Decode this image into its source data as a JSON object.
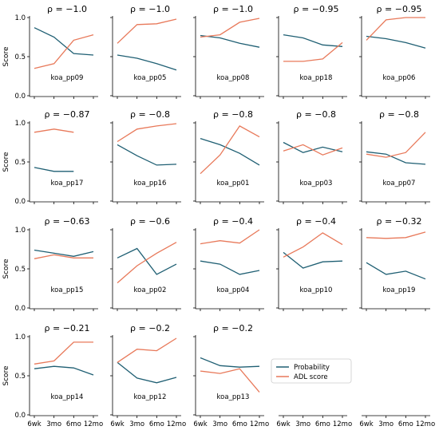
{
  "figure": {
    "x_ticks": [
      "6wk",
      "3mo",
      "6mo",
      "12mo"
    ],
    "y_ticks": [
      "0.0",
      "0.5",
      "1.0"
    ],
    "y_label": "Score",
    "legend": [
      {
        "label": "Probability",
        "color": "#1f5f73"
      },
      {
        "label": "ADL score",
        "color": "#e8795a"
      }
    ]
  },
  "chart_data": [
    {
      "type": "line",
      "title": "ρ = −1.0",
      "patient": "koa_pp09",
      "x": [
        "6wk",
        "3mo",
        "6mo",
        "12mo"
      ],
      "ylim": [
        0,
        1
      ],
      "series": [
        {
          "name": "Probability",
          "values": [
            0.87,
            0.75,
            0.54,
            0.52
          ]
        },
        {
          "name": "ADL score",
          "values": [
            0.35,
            0.41,
            0.71,
            0.78
          ]
        }
      ]
    },
    {
      "type": "line",
      "title": "ρ = −1.0",
      "patient": "koa_pp05",
      "x": [
        "6wk",
        "3mo",
        "6mo",
        "12mo"
      ],
      "ylim": [
        0,
        1
      ],
      "series": [
        {
          "name": "Probability",
          "values": [
            0.52,
            0.48,
            0.41,
            0.33
          ]
        },
        {
          "name": "ADL score",
          "values": [
            0.67,
            0.91,
            0.92,
            0.98
          ]
        }
      ]
    },
    {
      "type": "line",
      "title": "ρ = −1.0",
      "patient": "koa_pp08",
      "x": [
        "6wk",
        "3mo",
        "6mo",
        "12mo"
      ],
      "ylim": [
        0,
        1
      ],
      "series": [
        {
          "name": "Probability",
          "values": [
            0.77,
            0.74,
            0.67,
            0.62
          ]
        },
        {
          "name": "ADL score",
          "values": [
            0.75,
            0.78,
            0.94,
            0.99
          ]
        }
      ]
    },
    {
      "type": "line",
      "title": "ρ = −0.95",
      "patient": "koa_pp18",
      "x": [
        "6wk",
        "3mo",
        "6mo",
        "12mo"
      ],
      "ylim": [
        0,
        1
      ],
      "series": [
        {
          "name": "Probability",
          "values": [
            0.78,
            0.74,
            0.65,
            0.63
          ]
        },
        {
          "name": "ADL score",
          "values": [
            0.44,
            0.44,
            0.47,
            0.68
          ]
        }
      ]
    },
    {
      "type": "line",
      "title": "ρ = −0.95",
      "patient": "koa_pp06",
      "x": [
        "6wk",
        "3mo",
        "6mo",
        "12mo"
      ],
      "ylim": [
        0,
        1
      ],
      "series": [
        {
          "name": "Probability",
          "values": [
            0.76,
            0.73,
            0.68,
            0.61
          ]
        },
        {
          "name": "ADL score",
          "values": [
            0.71,
            0.97,
            1.0,
            1.0
          ]
        }
      ]
    },
    {
      "type": "line",
      "title": "ρ = −0.87",
      "patient": "koa_pp17",
      "x": [
        "6wk",
        "3mo",
        "6mo",
        "12mo"
      ],
      "ylim": [
        0,
        1
      ],
      "series": [
        {
          "name": "Probability",
          "values": [
            0.43,
            0.38,
            0.38,
            null
          ]
        },
        {
          "name": "ADL score",
          "values": [
            0.88,
            0.92,
            0.88,
            null
          ]
        }
      ]
    },
    {
      "type": "line",
      "title": "ρ = −0.8",
      "patient": "koa_pp16",
      "x": [
        "6wk",
        "3mo",
        "6mo",
        "12mo"
      ],
      "ylim": [
        0,
        1
      ],
      "series": [
        {
          "name": "Probability",
          "values": [
            0.72,
            0.58,
            0.46,
            0.47
          ]
        },
        {
          "name": "ADL score",
          "values": [
            0.76,
            0.92,
            0.96,
            0.99
          ]
        }
      ]
    },
    {
      "type": "line",
      "title": "ρ = −0.8",
      "patient": "koa_pp01",
      "x": [
        "6wk",
        "3mo",
        "6mo",
        "12mo"
      ],
      "ylim": [
        0,
        1
      ],
      "series": [
        {
          "name": "Probability",
          "values": [
            0.8,
            0.72,
            0.61,
            0.46
          ]
        },
        {
          "name": "ADL score",
          "values": [
            0.35,
            0.59,
            0.96,
            0.82
          ]
        }
      ]
    },
    {
      "type": "line",
      "title": "ρ = −0.8",
      "patient": "koa_pp03",
      "x": [
        "6wk",
        "3mo",
        "6mo",
        "12mo"
      ],
      "ylim": [
        0,
        1
      ],
      "series": [
        {
          "name": "Probability",
          "values": [
            0.75,
            0.62,
            0.69,
            0.63
          ]
        },
        {
          "name": "ADL score",
          "values": [
            0.64,
            0.72,
            0.59,
            0.68
          ]
        }
      ]
    },
    {
      "type": "line",
      "title": "ρ = −0.8",
      "patient": "koa_pp07",
      "x": [
        "6wk",
        "3mo",
        "6mo",
        "12mo"
      ],
      "ylim": [
        0,
        1
      ],
      "series": [
        {
          "name": "Probability",
          "values": [
            0.63,
            0.6,
            0.49,
            0.47
          ]
        },
        {
          "name": "ADL score",
          "values": [
            0.6,
            0.56,
            0.62,
            0.88
          ]
        }
      ]
    },
    {
      "type": "line",
      "title": "ρ = −0.63",
      "patient": "koa_pp15",
      "x": [
        "6wk",
        "3mo",
        "6mo",
        "12mo"
      ],
      "ylim": [
        0,
        1
      ],
      "series": [
        {
          "name": "Probability",
          "values": [
            0.74,
            0.7,
            0.66,
            0.72
          ]
        },
        {
          "name": "ADL score",
          "values": [
            0.63,
            0.68,
            0.64,
            0.64
          ]
        }
      ]
    },
    {
      "type": "line",
      "title": "ρ = −0.6",
      "patient": "koa_pp02",
      "x": [
        "6wk",
        "3mo",
        "6mo",
        "12mo"
      ],
      "ylim": [
        0,
        1
      ],
      "series": [
        {
          "name": "Probability",
          "values": [
            0.64,
            0.76,
            0.43,
            0.56
          ]
        },
        {
          "name": "ADL score",
          "values": [
            0.32,
            0.54,
            0.7,
            0.84
          ]
        }
      ]
    },
    {
      "type": "line",
      "title": "ρ = −0.4",
      "patient": "koa_pp04",
      "x": [
        "6wk",
        "3mo",
        "6mo",
        "12mo"
      ],
      "ylim": [
        0,
        1
      ],
      "series": [
        {
          "name": "Probability",
          "values": [
            0.6,
            0.56,
            0.43,
            0.48
          ]
        },
        {
          "name": "ADL score",
          "values": [
            0.82,
            0.86,
            0.83,
            1.0
          ]
        }
      ]
    },
    {
      "type": "line",
      "title": "ρ = −0.4",
      "patient": "koa_pp10",
      "x": [
        "6wk",
        "3mo",
        "6mo",
        "12mo"
      ],
      "ylim": [
        0,
        1
      ],
      "series": [
        {
          "name": "Probability",
          "values": [
            0.71,
            0.51,
            0.59,
            0.6
          ]
        },
        {
          "name": "ADL score",
          "values": [
            0.65,
            0.78,
            0.96,
            0.81
          ]
        }
      ]
    },
    {
      "type": "line",
      "title": "ρ = −0.32",
      "patient": "koa_pp19",
      "x": [
        "6wk",
        "3mo",
        "6mo",
        "12mo"
      ],
      "ylim": [
        0,
        1
      ],
      "series": [
        {
          "name": "Probability",
          "values": [
            0.58,
            0.43,
            0.47,
            0.37
          ]
        },
        {
          "name": "ADL score",
          "values": [
            0.9,
            0.89,
            0.9,
            0.97
          ]
        }
      ]
    },
    {
      "type": "line",
      "title": "ρ = −0.21",
      "patient": "koa_pp14",
      "x": [
        "6wk",
        "3mo",
        "6mo",
        "12mo"
      ],
      "ylim": [
        0,
        1
      ],
      "series": [
        {
          "name": "Probability",
          "values": [
            0.59,
            0.62,
            0.6,
            0.51
          ]
        },
        {
          "name": "ADL score",
          "values": [
            0.65,
            0.69,
            0.93,
            0.93
          ]
        }
      ]
    },
    {
      "type": "line",
      "title": "ρ = −0.2",
      "patient": "koa_pp12",
      "x": [
        "6wk",
        "3mo",
        "6mo",
        "12mo"
      ],
      "ylim": [
        0,
        1
      ],
      "series": [
        {
          "name": "Probability",
          "values": [
            0.67,
            0.47,
            0.41,
            0.48
          ]
        },
        {
          "name": "ADL score",
          "values": [
            0.67,
            0.84,
            0.82,
            0.98
          ]
        }
      ]
    },
    {
      "type": "line",
      "title": "ρ = −0.2",
      "patient": "koa_pp13",
      "x": [
        "6wk",
        "3mo",
        "6mo",
        "12mo"
      ],
      "ylim": [
        0,
        1
      ],
      "series": [
        {
          "name": "Probability",
          "values": [
            0.73,
            0.63,
            0.61,
            0.62
          ]
        },
        {
          "name": "ADL score",
          "values": [
            0.56,
            0.53,
            0.59,
            0.29
          ]
        }
      ]
    }
  ]
}
